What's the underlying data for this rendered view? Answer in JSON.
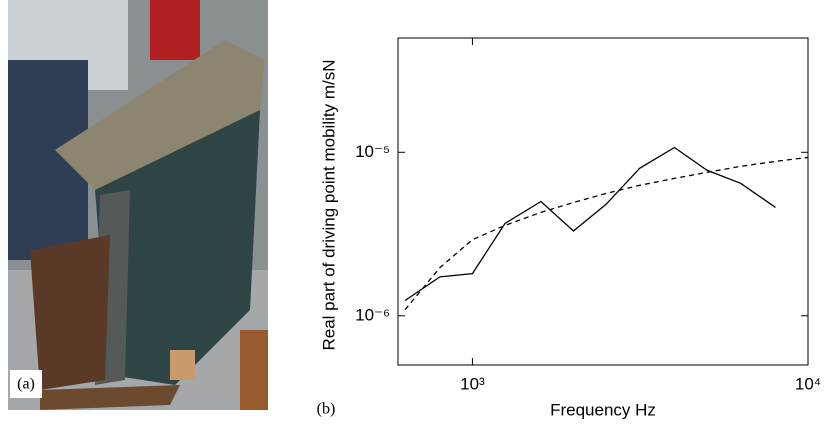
{
  "panel_labels": {
    "a": "(a)",
    "b": "(b)"
  },
  "chart_data": {
    "type": "line",
    "xlabel": "Frequency Hz",
    "ylabel": "Real part of driving point mobility m/sN",
    "xscale": "log",
    "yscale": "log",
    "xlim": [
      600,
      10000
    ],
    "ylim": [
      5e-07,
      5e-05
    ],
    "xticks": [
      {
        "value": 1000,
        "label": "10³"
      },
      {
        "value": 10000,
        "label": "10⁴"
      }
    ],
    "yticks": [
      {
        "value": 1e-06,
        "label": "10⁻⁶"
      },
      {
        "value": 1e-05,
        "label": "10⁻⁵"
      }
    ],
    "series": [
      {
        "color": "#000000",
        "line_style": "solid",
        "x": [
          630,
          800,
          1000,
          1250,
          1600,
          2000,
          2500,
          3150,
          4000,
          5000,
          6300,
          8000
        ],
        "values": [
          1.24e-06,
          1.73e-06,
          1.81e-06,
          3.67e-06,
          5e-06,
          3.3e-06,
          4.8e-06,
          7.98e-06,
          1.07e-05,
          7.76e-06,
          6.46e-06,
          4.6e-06
        ]
      },
      {
        "color": "#000000",
        "line_style": "dashed",
        "x": [
          630,
          800,
          1000,
          1250,
          1600,
          2000,
          2500,
          3150,
          4000,
          5000,
          6300,
          8000,
          10000
        ],
        "values": [
          1.09e-06,
          1.97e-06,
          2.92e-06,
          3.57e-06,
          4.29e-06,
          4.93e-06,
          5.6e-06,
          6.28e-06,
          6.92e-06,
          7.54e-06,
          8.2e-06,
          8.8e-06,
          9.3e-06
        ]
      }
    ]
  }
}
